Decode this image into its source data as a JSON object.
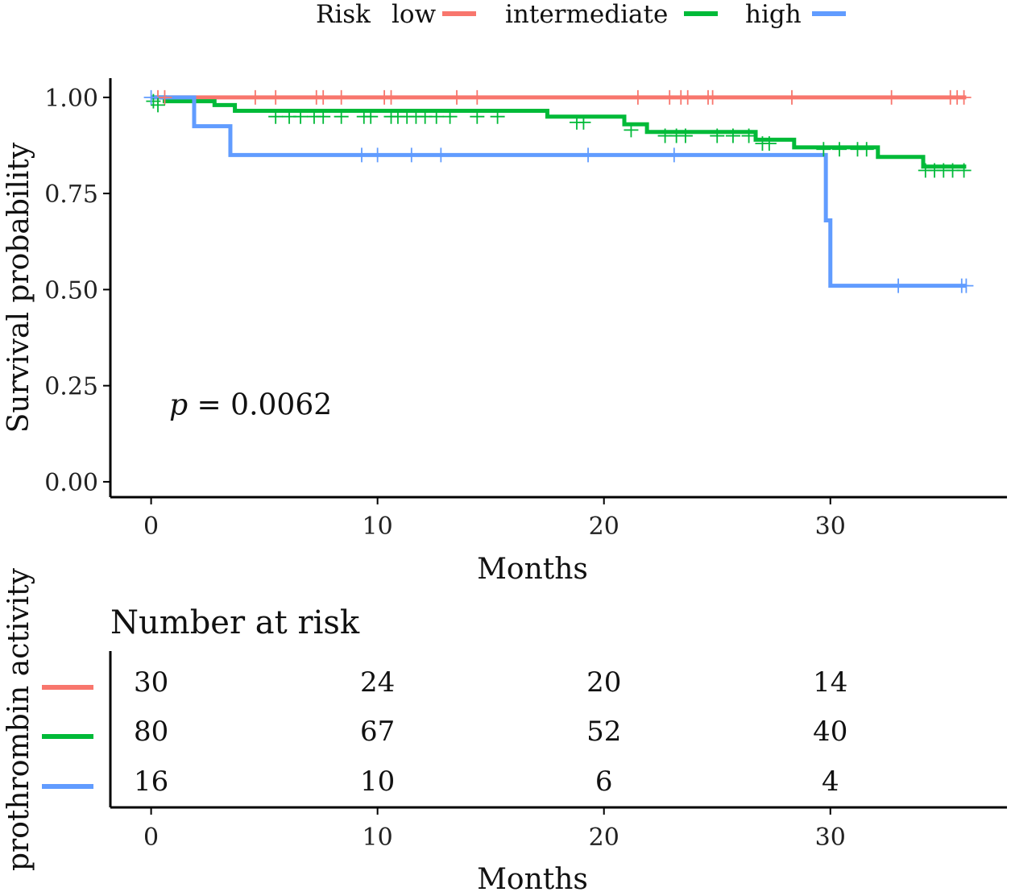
{
  "legend": {
    "title": "Risk",
    "entries": [
      "low",
      "intermediate",
      "high"
    ]
  },
  "risk_table": {
    "title": "Number at risk",
    "ylabel": "prothrombin activity",
    "xlabel": "Months",
    "times": [
      0,
      10,
      20,
      30
    ],
    "rows": [
      {
        "group": "low",
        "counts": [
          "30",
          "24",
          "20",
          "14"
        ]
      },
      {
        "group": "intermediate",
        "counts": [
          "80",
          "67",
          "52",
          "40"
        ]
      },
      {
        "group": "high",
        "counts": [
          "16",
          "10",
          "6",
          "4"
        ]
      }
    ]
  },
  "chart_data": {
    "type": "line",
    "title": "",
    "xlabel": "Months",
    "ylabel": "Survival probability",
    "xlim": [
      -1.8,
      37.8
    ],
    "ylim": [
      -0.04,
      1.05
    ],
    "xticks": [
      0,
      10,
      20,
      30
    ],
    "yticks": [
      0.0,
      0.25,
      0.5,
      0.75,
      1.0
    ],
    "ytick_labels": [
      "0.00",
      "0.25",
      "0.50",
      "0.75",
      "1.00"
    ],
    "xtick_labels": [
      "0",
      "10",
      "20",
      "30"
    ],
    "annotation": {
      "label_italic": "p",
      "label_rest": " = 0.0062",
      "x": 0.8,
      "y": 0.2
    },
    "series": [
      {
        "name": "low",
        "color": "#F8766D",
        "steps": [
          [
            0,
            1.0
          ],
          [
            36,
            1.0
          ]
        ],
        "censored": [
          0.3,
          0.6,
          4.6,
          5.5,
          7.3,
          7.6,
          8.4,
          10.3,
          10.6,
          13.5,
          14.4,
          21.5,
          22.9,
          23.4,
          23.7,
          24.6,
          24.8,
          28.3,
          32.7,
          35.3,
          35.6,
          35.9
        ]
      },
      {
        "name": "intermediate",
        "color": "#00BA38",
        "steps": [
          [
            0,
            1.0
          ],
          [
            0.6,
            0.99
          ],
          [
            2.8,
            0.98
          ],
          [
            3.7,
            0.965
          ],
          [
            17.5,
            0.95
          ],
          [
            20.9,
            0.93
          ],
          [
            21.9,
            0.91
          ],
          [
            26.7,
            0.89
          ],
          [
            28.4,
            0.87
          ],
          [
            32.1,
            0.845
          ],
          [
            34.1,
            0.82
          ],
          [
            36,
            0.82
          ]
        ],
        "censored_points": [
          [
            0.1,
            0.99
          ],
          [
            0.3,
            0.98
          ],
          [
            5.5,
            0.95
          ],
          [
            6.1,
            0.95
          ],
          [
            6.6,
            0.95
          ],
          [
            7.2,
            0.95
          ],
          [
            7.6,
            0.95
          ],
          [
            8.4,
            0.95
          ],
          [
            9.4,
            0.95
          ],
          [
            9.7,
            0.95
          ],
          [
            10.6,
            0.95
          ],
          [
            10.9,
            0.95
          ],
          [
            11.3,
            0.95
          ],
          [
            11.7,
            0.95
          ],
          [
            12.1,
            0.95
          ],
          [
            12.6,
            0.95
          ],
          [
            13.2,
            0.95
          ],
          [
            14.4,
            0.95
          ],
          [
            15.3,
            0.95
          ],
          [
            18.8,
            0.935
          ],
          [
            19.1,
            0.935
          ],
          [
            21.2,
            0.915
          ],
          [
            22.7,
            0.9
          ],
          [
            23.2,
            0.9
          ],
          [
            23.6,
            0.9
          ],
          [
            25.0,
            0.9
          ],
          [
            25.7,
            0.9
          ],
          [
            26.4,
            0.9
          ],
          [
            27.0,
            0.88
          ],
          [
            27.3,
            0.88
          ],
          [
            29.7,
            0.865
          ],
          [
            30.4,
            0.865
          ],
          [
            31.2,
            0.865
          ],
          [
            31.6,
            0.865
          ],
          [
            34.2,
            0.81
          ],
          [
            34.6,
            0.81
          ],
          [
            35.0,
            0.81
          ],
          [
            35.4,
            0.81
          ],
          [
            35.9,
            0.81
          ]
        ]
      },
      {
        "name": "high",
        "color": "#619CFF",
        "steps": [
          [
            0,
            1.0
          ],
          [
            1.9,
            0.925
          ],
          [
            3.5,
            0.85
          ],
          [
            29.8,
            0.68
          ],
          [
            30.0,
            0.51
          ],
          [
            36,
            0.51
          ]
        ],
        "censored": [
          0.0,
          9.3,
          10.0,
          11.5,
          12.8,
          19.3,
          23.1,
          33.0,
          35.8,
          36.0
        ]
      }
    ]
  }
}
